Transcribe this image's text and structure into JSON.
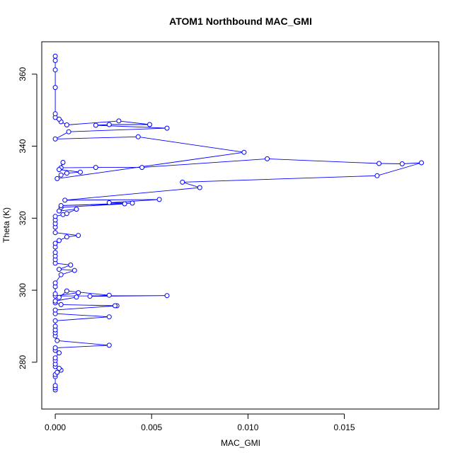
{
  "chart_data": {
    "type": "line",
    "title": "ATOM1 Northbound MAC_GMI",
    "xlabel": "MAC_GMI",
    "ylabel": "Theta (K)",
    "xlim": [
      -0.0007,
      0.0199
    ],
    "ylim": [
      267,
      369
    ],
    "x_ticks": [
      0.0,
      0.005,
      0.01,
      0.015
    ],
    "x_tick_labels": [
      "0.000",
      "0.005",
      "0.010",
      "0.015"
    ],
    "y_ticks": [
      280,
      300,
      320,
      340,
      360
    ],
    "y_tick_labels": [
      "280",
      "300",
      "320",
      "340",
      "360"
    ],
    "grid": false,
    "legend": "none",
    "colors": {
      "series": "#0000ff",
      "axes": "#000000"
    },
    "series": [
      {
        "style": "line-with-open-circles",
        "points": [
          [
            0,
            272.3
          ],
          [
            0,
            272.9
          ],
          [
            0,
            273.5
          ],
          [
            0,
            276.0
          ],
          [
            0,
            276.6
          ],
          [
            0.0001,
            277.2
          ],
          [
            0.0003,
            277.8
          ],
          [
            0.0002,
            278.3
          ],
          [
            0,
            278.8
          ],
          [
            0,
            279.5
          ],
          [
            0,
            280.5
          ],
          [
            0,
            281.2
          ],
          [
            0.0002,
            282.6
          ],
          [
            0,
            283.3
          ],
          [
            0,
            284.0
          ],
          [
            0.0028,
            284.7
          ],
          [
            0.0001,
            286.0
          ],
          [
            0,
            287.3
          ],
          [
            0,
            288.2
          ],
          [
            0,
            289.0
          ],
          [
            0,
            290.0
          ],
          [
            0,
            291.5
          ],
          [
            0.0028,
            292.6
          ],
          [
            0,
            293.5
          ],
          [
            0,
            294.5
          ],
          [
            0.0032,
            295.7
          ],
          [
            0.0031,
            295.7
          ],
          [
            0.0003,
            296.0
          ],
          [
            0,
            296.5
          ],
          [
            0,
            297.0
          ],
          [
            0.0011,
            298.1
          ],
          [
            0.0012,
            299.3
          ],
          [
            0,
            298.4
          ],
          [
            0.0058,
            298.5
          ],
          [
            0.0018,
            298.3
          ],
          [
            0.0028,
            298.6
          ],
          [
            0.0006,
            299.8
          ],
          [
            0.0002,
            298.0
          ],
          [
            0,
            299.0
          ],
          [
            0,
            301.0
          ],
          [
            0,
            302.0
          ],
          [
            0.0003,
            304.3
          ],
          [
            0.001,
            305.5
          ],
          [
            0.0002,
            305.8
          ],
          [
            0.0008,
            307.0
          ],
          [
            0,
            307.5
          ],
          [
            0,
            308.5
          ],
          [
            0,
            309.5
          ],
          [
            0,
            310.5
          ],
          [
            0,
            312.0
          ],
          [
            0,
            313.0
          ],
          [
            0.0002,
            313.8
          ],
          [
            0.0006,
            314.8
          ],
          [
            0.0012,
            315.2
          ],
          [
            0,
            316.0
          ],
          [
            0,
            317.5
          ],
          [
            0,
            318.5
          ],
          [
            0,
            319.5
          ],
          [
            0,
            320.5
          ],
          [
            0.0004,
            321.0
          ],
          [
            0.0006,
            321.3
          ],
          [
            0.0011,
            322.5
          ],
          [
            0.0002,
            322.0
          ],
          [
            0.0003,
            323.0
          ],
          [
            0.0036,
            324.0
          ],
          [
            0.0003,
            323.5
          ],
          [
            0.004,
            324.2
          ],
          [
            0.0028,
            324.3
          ],
          [
            0.0054,
            325.2
          ],
          [
            0.0005,
            325.0
          ],
          [
            0.0075,
            328.5
          ],
          [
            0.0066,
            330.0
          ],
          [
            0.0167,
            331.8
          ],
          [
            0.019,
            335.4
          ],
          [
            0.018,
            335.1
          ],
          [
            0.0168,
            335.2
          ],
          [
            0.011,
            336.5
          ],
          [
            0.0045,
            334.1
          ],
          [
            0.0021,
            334.1
          ],
          [
            0.0003,
            334.0
          ],
          [
            0.0004,
            335.5
          ],
          [
            0.0002,
            333.5
          ],
          [
            0.0013,
            332.8
          ],
          [
            0.0006,
            332.5
          ],
          [
            0.0003,
            332.0
          ],
          [
            0.0001,
            331.0
          ],
          [
            0.0098,
            338.3
          ],
          [
            0.0043,
            342.6
          ],
          [
            0,
            342.0
          ],
          [
            0.0007,
            344.0
          ],
          [
            0.0058,
            345.0
          ],
          [
            0.0021,
            345.8
          ],
          [
            0.0028,
            346.0
          ],
          [
            0.0049,
            346.0
          ],
          [
            0.0033,
            347.0
          ],
          [
            0.0006,
            345.9
          ],
          [
            0.0003,
            346.8
          ],
          [
            0.0002,
            347.5
          ],
          [
            0,
            348.0
          ],
          [
            0,
            349.0
          ],
          [
            0,
            356.3
          ],
          [
            0,
            361.2
          ],
          [
            0,
            363.8
          ],
          [
            0,
            365.0
          ]
        ]
      }
    ]
  }
}
